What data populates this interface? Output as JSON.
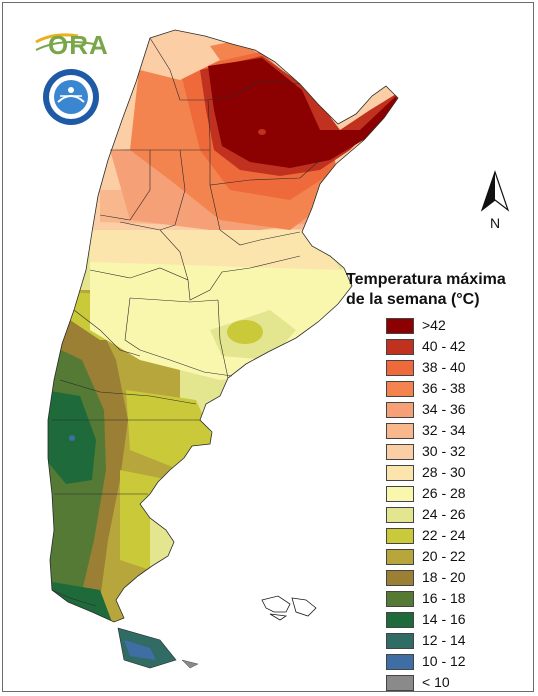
{
  "logos": {
    "ora_text": "ORA",
    "ora_color": "#7aa64a",
    "smn_seal": "smn-seal-icon"
  },
  "north_arrow": {
    "label": "N"
  },
  "legend": {
    "title_line1": "Temperatura máxima",
    "title_line2": "de la semana (°C)",
    "items": [
      {
        "label": ">42",
        "color": "#8b0000"
      },
      {
        "label": "40 - 42",
        "color": "#c0311f"
      },
      {
        "label": "38 - 40",
        "color": "#ee6a3a"
      },
      {
        "label": "36 - 38",
        "color": "#f3834f"
      },
      {
        "label": "34 - 36",
        "color": "#f6a077"
      },
      {
        "label": "32 - 34",
        "color": "#f9b78e"
      },
      {
        "label": "30 - 32",
        "color": "#fbcea6"
      },
      {
        "label": "28 - 30",
        "color": "#fbe5ad"
      },
      {
        "label": "26 - 28",
        "color": "#f8f7ad"
      },
      {
        "label": "24 - 26",
        "color": "#e3e58f"
      },
      {
        "label": "22 - 24",
        "color": "#c9c93a"
      },
      {
        "label": "20 - 22",
        "color": "#b7a63b"
      },
      {
        "label": "18 - 20",
        "color": "#9b7f35"
      },
      {
        "label": "16 - 18",
        "color": "#547a35"
      },
      {
        "label": "14 - 16",
        "color": "#1f6a3a"
      },
      {
        "label": "12 - 14",
        "color": "#306b64"
      },
      {
        "label": "10 - 12",
        "color": "#3f6ea5"
      },
      {
        "label": "< 10",
        "color": "#8a8a8a"
      }
    ]
  }
}
